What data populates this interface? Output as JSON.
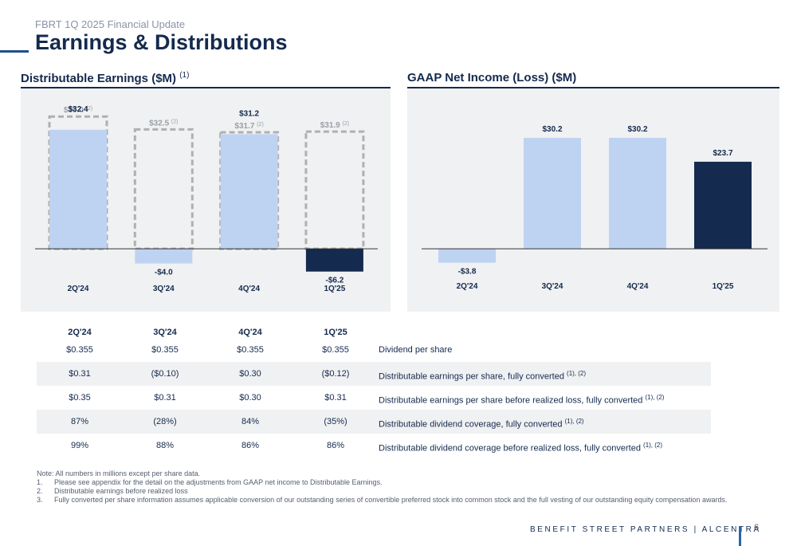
{
  "header": {
    "subtitle": "FBRT 1Q 2025 Financial Update",
    "title": "Earnings & Distributions"
  },
  "left_section": {
    "title": "Distributable Earnings ($M)",
    "note_ref": "(1)"
  },
  "right_section": {
    "title": "GAAP Net Income (Loss) ($M)"
  },
  "chart_data": [
    {
      "type": "bar",
      "title": "Distributable Earnings ($M)",
      "categories": [
        "2Q'24",
        "3Q'24",
        "4Q'24",
        "1Q'25"
      ],
      "series": [
        {
          "values": [
            32.4,
            -4.0,
            31.2,
            -6.2
          ]
        },
        {
          "name": "before realized losses",
          "values": [
            36.0,
            32.5,
            31.7,
            31.9
          ]
        }
      ],
      "value_labels": [
        "$32.4",
        "-$4.0",
        "$31.2",
        "-$6.2"
      ],
      "outline_labels": [
        "$36.0",
        "$32.5",
        "$31.7",
        "$31.9"
      ],
      "outline_note": "(2)",
      "highlight_index": 3,
      "colors": {
        "bar": "#bed3f1",
        "highlight": "#142a4e",
        "outline": "#b0b0b0"
      },
      "ylim": [
        -8,
        38
      ]
    },
    {
      "type": "bar",
      "title": "GAAP Net Income (Loss) ($M)",
      "categories": [
        "2Q'24",
        "3Q'24",
        "4Q'24",
        "1Q'25"
      ],
      "values": [
        -3.8,
        30.2,
        30.2,
        23.7
      ],
      "value_labels": [
        "-$3.8",
        "$30.2",
        "$30.2",
        "$23.7"
      ],
      "highlight_index": 3,
      "colors": {
        "bar": "#bed3f1",
        "highlight": "#142a4e"
      },
      "ylim": [
        -8,
        38
      ]
    }
  ],
  "table": {
    "headers": [
      "2Q'24",
      "3Q'24",
      "4Q'24",
      "1Q'25"
    ],
    "rows": [
      {
        "values": [
          "$0.355",
          "$0.355",
          "$0.355",
          "$0.355"
        ],
        "label": "Dividend per share",
        "note": ""
      },
      {
        "values": [
          "$0.31",
          "($0.10)",
          "$0.30",
          "($0.12)"
        ],
        "label": "Distributable earnings per share, fully converted",
        "note": "(1), (2)"
      },
      {
        "values": [
          "$0.35",
          "$0.31",
          "$0.30",
          "$0.31"
        ],
        "label": "Distributable earnings per share before realized loss, fully converted",
        "note": "(1), (2)"
      },
      {
        "values": [
          "87%",
          "(28%)",
          "84%",
          "(35%)"
        ],
        "label": "Distributable dividend coverage, fully converted",
        "note": "(1), (2)"
      },
      {
        "values": [
          "99%",
          "88%",
          "86%",
          "86%"
        ],
        "label": "Distributable dividend coverage before realized loss, fully converted",
        "note": "(1), (2)"
      }
    ]
  },
  "notes": {
    "intro": "Note: All numbers in millions except per share data.",
    "items": [
      {
        "num": "1.",
        "text": "Please see appendix for the detail on the adjustments from GAAP net income to Distributable Earnings."
      },
      {
        "num": "2.",
        "text": "Distributable earnings before realized loss"
      },
      {
        "num": "3.",
        "text": "Fully converted per share information assumes applicable conversion of our outstanding series of convertible preferred stock into common stock and the full vesting of our outstanding equity compensation awards."
      }
    ]
  },
  "footer": {
    "brand": "BENEFIT STREET PARTNERS | ALCENTRA",
    "page": "6"
  }
}
